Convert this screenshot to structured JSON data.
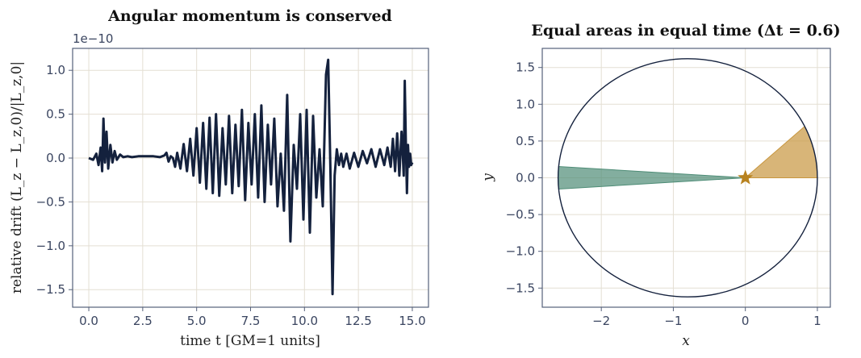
{
  "chart_data": [
    {
      "type": "line",
      "title": "Angular momentum is conserved",
      "xlabel": "time  t  [GM=1 units]",
      "ylabel": "relative drift  (L_z − L_z,0)/|L_z,0|",
      "offset_text": "1e−10",
      "xlim": [
        -0.75,
        15.75
      ],
      "ylim": [
        -1.7,
        1.25
      ],
      "xticks": [
        0,
        2.5,
        5,
        7.5,
        10,
        12.5,
        15
      ],
      "xtick_labels": [
        "0.0",
        "2.5",
        "5.0",
        "7.5",
        "10.0",
        "12.5",
        "15.0"
      ],
      "yticks": [
        -1.5,
        -1.0,
        -0.5,
        0,
        0.5,
        1.0
      ],
      "ytick_labels": [
        "−1.5",
        "−1.0",
        "−0.5",
        "0.0",
        "0.5",
        "1.0"
      ],
      "grid": true,
      "color": "#14213d",
      "series": [
        {
          "x": [
            0.0,
            0.2,
            0.35,
            0.45,
            0.55,
            0.62,
            0.68,
            0.75,
            0.82,
            0.9,
            1.0,
            1.1,
            1.2,
            1.3,
            1.45,
            1.6,
            1.8,
            2.0,
            2.3,
            2.6,
            3.0,
            3.3,
            3.5,
            3.6,
            3.7,
            3.8,
            3.9,
            4.0,
            4.1,
            4.25,
            4.4,
            4.55,
            4.7,
            4.85,
            5.0,
            5.15,
            5.3,
            5.45,
            5.6,
            5.75,
            5.9,
            6.05,
            6.2,
            6.35,
            6.5,
            6.65,
            6.8,
            6.95,
            7.1,
            7.25,
            7.4,
            7.55,
            7.7,
            7.85,
            8.0,
            8.15,
            8.3,
            8.45,
            8.6,
            8.75,
            8.9,
            9.05,
            9.2,
            9.35,
            9.5,
            9.65,
            9.8,
            9.95,
            10.1,
            10.25,
            10.4,
            10.55,
            10.7,
            10.85,
            11.0,
            11.1,
            11.2,
            11.3,
            11.4,
            11.5,
            11.6,
            11.7,
            11.8,
            11.95,
            12.1,
            12.3,
            12.5,
            12.7,
            12.9,
            13.1,
            13.3,
            13.5,
            13.7,
            13.85,
            14.0,
            14.1,
            14.2,
            14.3,
            14.4,
            14.5,
            14.55,
            14.6,
            14.65,
            14.7,
            14.75,
            14.8,
            14.85,
            14.9,
            14.95,
            15.0
          ],
          "y": [
            0.0,
            -0.02,
            0.05,
            -0.08,
            0.12,
            -0.15,
            0.45,
            -0.05,
            0.3,
            -0.12,
            0.15,
            -0.05,
            0.08,
            -0.02,
            0.04,
            0.01,
            0.02,
            0.01,
            0.02,
            0.02,
            0.02,
            0.01,
            0.03,
            0.06,
            -0.04,
            0.02,
            0.0,
            -0.1,
            0.06,
            -0.12,
            0.16,
            -0.15,
            0.22,
            -0.2,
            0.34,
            -0.28,
            0.4,
            -0.35,
            0.46,
            -0.4,
            0.5,
            -0.43,
            0.34,
            -0.3,
            0.48,
            -0.4,
            0.38,
            -0.32,
            0.55,
            -0.48,
            0.4,
            -0.3,
            0.5,
            -0.45,
            0.6,
            -0.5,
            0.38,
            -0.3,
            0.45,
            -0.55,
            0.05,
            -0.6,
            0.72,
            -0.95,
            0.15,
            -0.35,
            0.5,
            -0.7,
            0.55,
            -0.85,
            0.48,
            -0.45,
            0.1,
            -0.55,
            0.95,
            1.12,
            -0.1,
            -1.55,
            -0.2,
            0.1,
            -0.08,
            0.05,
            -0.1,
            0.05,
            -0.12,
            0.06,
            -0.1,
            0.08,
            -0.06,
            0.1,
            -0.1,
            0.1,
            -0.08,
            0.12,
            -0.1,
            0.22,
            -0.15,
            0.28,
            -0.2,
            0.3,
            0.1,
            -0.2,
            0.88,
            0.2,
            -0.4,
            0.15,
            -0.1,
            0.05,
            -0.08,
            -0.05
          ]
        }
      ]
    },
    {
      "type": "orbit",
      "title": "Equal areas in equal time (Δt = 0.6)",
      "xlabel": "x",
      "ylabel": "y",
      "xlim": [
        -2.82,
        1.18
      ],
      "ylim": [
        -1.76,
        1.76
      ],
      "xticks": [
        -2,
        -1,
        0,
        1
      ],
      "xtick_labels": [
        "−2",
        "−1",
        "0",
        "1"
      ],
      "yticks": [
        -1.5,
        -1.0,
        -0.5,
        0,
        0.5,
        1.0,
        1.5
      ],
      "ytick_labels": [
        "−1.5",
        "−1.0",
        "−0.5",
        "0.0",
        "0.5",
        "1.0",
        "1.5"
      ],
      "grid": true,
      "ellipse": {
        "cx": -0.8,
        "cy": 0.0,
        "a": 1.8,
        "b": 1.62
      },
      "focus": [
        0,
        0
      ],
      "sectors": [
        {
          "theta_start_deg": 0,
          "theta_end_deg": 40.3,
          "color": "#c8963e"
        },
        {
          "theta_start_deg": 176.6,
          "theta_end_deg": 183.4,
          "color": "#4e8c76"
        }
      ],
      "star_color": "#b8821f",
      "orbit_color": "#14213d"
    }
  ]
}
